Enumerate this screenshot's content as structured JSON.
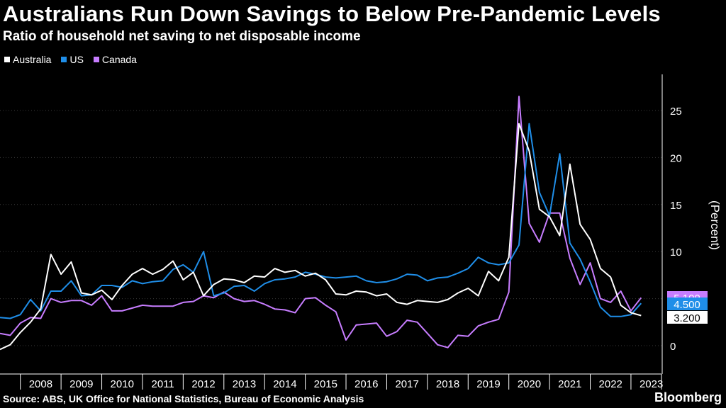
{
  "chart_data": {
    "type": "line",
    "title": "Australians Run Down Savings to Below Pre-Pandemic Levels",
    "subtitle": "Ratio of household net saving to net disposable income",
    "ylabel": "(Percent)",
    "xlabel": "",
    "ylim": [
      -2,
      28
    ],
    "xlim": [
      2007.5,
      2023.75
    ],
    "yticks": [
      0,
      5,
      10,
      15,
      20,
      25
    ],
    "year_labels": [
      "2008",
      "2009",
      "2010",
      "2011",
      "2012",
      "2013",
      "2014",
      "2015",
      "2016",
      "2017",
      "2018",
      "2019",
      "2020",
      "2021",
      "2022",
      "2023"
    ],
    "series": [
      {
        "name": "Australia",
        "color": "#ffffff",
        "last_label": "3.200",
        "x": [
          2007.5,
          2007.75,
          2008.0,
          2008.25,
          2008.5,
          2008.75,
          2009.0,
          2009.25,
          2009.5,
          2009.75,
          2010.0,
          2010.25,
          2010.5,
          2010.75,
          2011.0,
          2011.25,
          2011.5,
          2011.75,
          2012.0,
          2012.25,
          2012.5,
          2012.75,
          2013.0,
          2013.25,
          2013.5,
          2013.75,
          2014.0,
          2014.25,
          2014.5,
          2014.75,
          2015.0,
          2015.25,
          2015.5,
          2015.75,
          2016.0,
          2016.25,
          2016.5,
          2016.75,
          2017.0,
          2017.25,
          2017.5,
          2017.75,
          2018.0,
          2018.25,
          2018.5,
          2018.75,
          2019.0,
          2019.25,
          2019.5,
          2019.75,
          2020.0,
          2020.25,
          2020.5,
          2020.75,
          2021.0,
          2021.25,
          2021.5,
          2021.75,
          2022.0,
          2022.25,
          2022.5,
          2022.75,
          2023.0,
          2023.25
        ],
        "values": [
          -0.4,
          0.1,
          1.4,
          2.5,
          3.9,
          9.7,
          7.6,
          8.9,
          5.6,
          5.4,
          5.9,
          4.9,
          6.4,
          7.6,
          8.2,
          7.6,
          8.1,
          9.0,
          7.0,
          7.8,
          5.3,
          6.5,
          7.1,
          7.0,
          6.7,
          7.4,
          7.3,
          8.2,
          7.8,
          8.0,
          7.4,
          7.7,
          7.0,
          5.5,
          5.4,
          5.8,
          5.7,
          5.3,
          5.5,
          4.6,
          4.4,
          4.8,
          4.7,
          4.6,
          4.9,
          5.6,
          6.1,
          5.3,
          7.9,
          6.9,
          9.4,
          23.6,
          20.7,
          14.5,
          13.7,
          11.7,
          19.3,
          12.9,
          11.3,
          8.2,
          7.3,
          4.3,
          3.5,
          3.2
        ]
      },
      {
        "name": "US",
        "color": "#1f8ee8",
        "last_label": "4.500",
        "x": [
          2007.5,
          2007.75,
          2008.0,
          2008.25,
          2008.5,
          2008.75,
          2009.0,
          2009.25,
          2009.5,
          2009.75,
          2010.0,
          2010.25,
          2010.5,
          2010.75,
          2011.0,
          2011.25,
          2011.5,
          2011.75,
          2012.0,
          2012.25,
          2012.5,
          2012.75,
          2013.0,
          2013.25,
          2013.5,
          2013.75,
          2014.0,
          2014.25,
          2014.5,
          2014.75,
          2015.0,
          2015.25,
          2015.5,
          2015.75,
          2016.0,
          2016.25,
          2016.5,
          2016.75,
          2017.0,
          2017.25,
          2017.5,
          2017.75,
          2018.0,
          2018.25,
          2018.5,
          2018.75,
          2019.0,
          2019.25,
          2019.5,
          2019.75,
          2020.0,
          2020.25,
          2020.5,
          2020.75,
          2021.0,
          2021.25,
          2021.5,
          2021.75,
          2022.0,
          2022.25,
          2022.5,
          2022.75,
          2023.0,
          2023.25
        ],
        "values": [
          3.0,
          2.9,
          3.3,
          4.9,
          3.7,
          5.8,
          5.8,
          6.9,
          5.3,
          5.4,
          6.4,
          6.4,
          6.2,
          6.9,
          6.6,
          6.8,
          6.9,
          8.1,
          8.6,
          7.8,
          10.0,
          5.3,
          5.6,
          6.3,
          6.4,
          5.8,
          6.6,
          7.0,
          7.1,
          7.3,
          7.8,
          7.6,
          7.3,
          7.2,
          7.3,
          7.4,
          6.9,
          6.7,
          6.8,
          7.1,
          7.6,
          7.5,
          6.9,
          7.2,
          7.3,
          7.7,
          8.2,
          9.4,
          8.8,
          8.6,
          8.8,
          10.7,
          23.6,
          16.3,
          13.8,
          20.4,
          10.9,
          9.2,
          6.8,
          4.1,
          3.1,
          3.1,
          3.3,
          4.5
        ]
      },
      {
        "name": "Canada",
        "color": "#c77dff",
        "last_label": "5.100",
        "x": [
          2007.5,
          2007.75,
          2008.0,
          2008.25,
          2008.5,
          2008.75,
          2009.0,
          2009.25,
          2009.5,
          2009.75,
          2010.0,
          2010.25,
          2010.5,
          2010.75,
          2011.0,
          2011.25,
          2011.5,
          2011.75,
          2012.0,
          2012.25,
          2012.5,
          2012.75,
          2013.0,
          2013.25,
          2013.5,
          2013.75,
          2014.0,
          2014.25,
          2014.5,
          2014.75,
          2015.0,
          2015.25,
          2015.5,
          2015.75,
          2016.0,
          2016.25,
          2016.5,
          2016.75,
          2017.0,
          2017.25,
          2017.5,
          2017.75,
          2018.0,
          2018.25,
          2018.5,
          2018.75,
          2019.0,
          2019.25,
          2019.5,
          2019.75,
          2020.0,
          2020.25,
          2020.5,
          2020.75,
          2021.0,
          2021.25,
          2021.5,
          2021.75,
          2022.0,
          2022.25,
          2022.5,
          2022.75,
          2023.0,
          2023.25
        ],
        "values": [
          1.3,
          1.1,
          2.4,
          3.0,
          2.9,
          5.0,
          4.6,
          4.8,
          4.8,
          4.3,
          5.3,
          3.7,
          3.7,
          4.0,
          4.3,
          4.2,
          4.2,
          4.2,
          4.6,
          4.7,
          5.3,
          5.1,
          5.7,
          5.0,
          4.7,
          4.8,
          4.4,
          3.9,
          3.8,
          3.5,
          5.0,
          5.1,
          4.3,
          3.6,
          0.6,
          2.2,
          2.3,
          2.4,
          1.0,
          1.5,
          2.7,
          2.5,
          1.3,
          0.1,
          -0.2,
          1.1,
          1.0,
          2.1,
          2.5,
          2.8,
          5.7,
          26.5,
          13.0,
          11.0,
          14.1,
          14.1,
          9.3,
          6.5,
          8.8,
          5.0,
          4.6,
          5.8,
          3.7,
          5.1
        ]
      }
    ]
  },
  "source": "Source: ABS, UK Office for National Statistics, Bureau of Economic Analysis",
  "brand": "Bloomberg"
}
